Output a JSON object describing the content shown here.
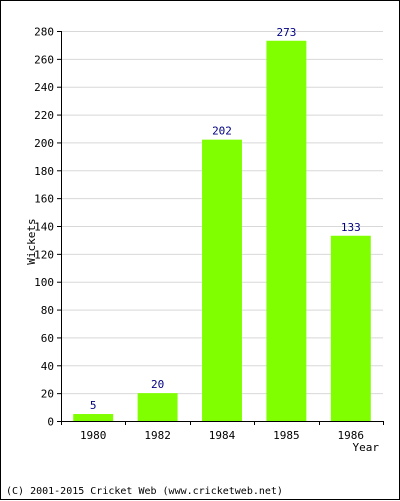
{
  "chart_data": {
    "type": "bar",
    "title": "",
    "xlabel": "Year",
    "ylabel": "Wickets",
    "categories": [
      "1980",
      "1982",
      "1984",
      "1985",
      "1986"
    ],
    "values": [
      5,
      20,
      202,
      273,
      133
    ],
    "data_labels": [
      "5",
      "20",
      "202",
      "273",
      "133"
    ],
    "ylim": [
      0,
      280
    ],
    "yticks": [
      0,
      20,
      40,
      60,
      80,
      100,
      120,
      140,
      160,
      180,
      200,
      220,
      240,
      260,
      280
    ],
    "grid": true,
    "bar_color": "#7fff00",
    "label_color": "#000080",
    "grid_color": "#d8d8d8"
  },
  "footer": {
    "copyright": "(C) 2001-2015 Cricket Web (www.cricketweb.net)"
  }
}
